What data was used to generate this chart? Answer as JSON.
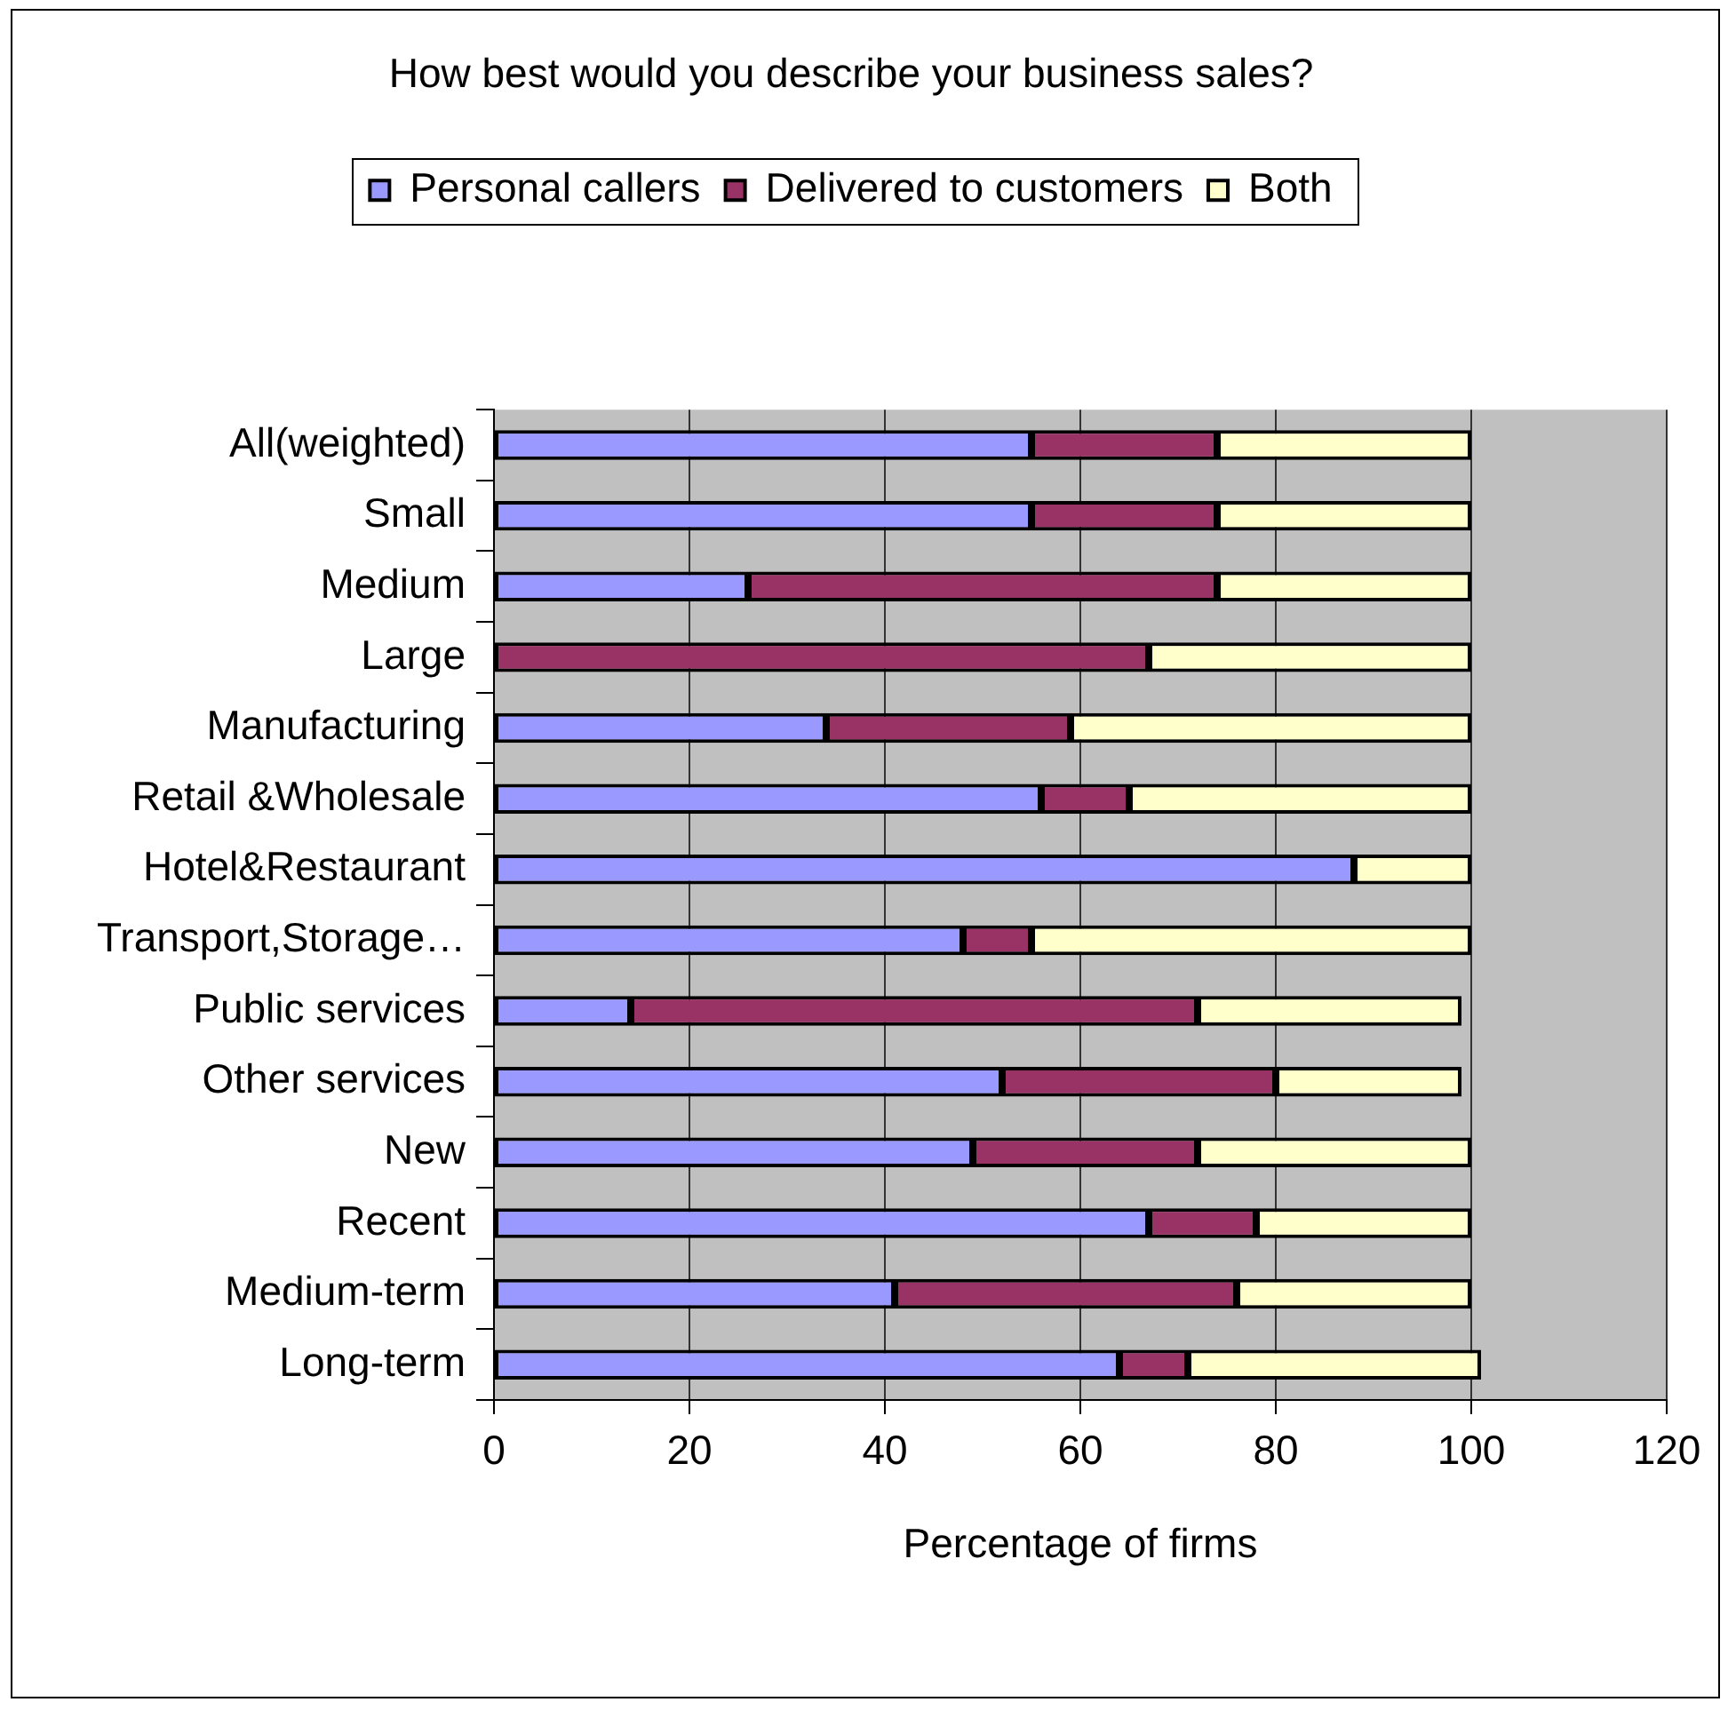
{
  "chart_data": {
    "type": "bar",
    "orientation": "horizontal",
    "stacked": true,
    "title": "How best would you describe your business sales?",
    "xlabel": "Percentage of firms",
    "categories": [
      "All(weighted)",
      "Small",
      "Medium",
      "Large",
      "Manufacturing",
      "Retail &Wholesale",
      "Hotel&Restaurant",
      "Transport,Storage…",
      "Public services",
      "Other services",
      "New",
      "Recent",
      "Medium-term",
      "Long-term"
    ],
    "series": [
      {
        "name": "Personal callers",
        "color": "#9999ff",
        "values": [
          55,
          55,
          26,
          0,
          34,
          56,
          88,
          48,
          14,
          52,
          49,
          67,
          41,
          64
        ]
      },
      {
        "name": "Delivered to customers",
        "color": "#993366",
        "values": [
          19,
          19,
          48,
          67,
          25,
          9,
          0,
          7,
          58,
          28,
          23,
          11,
          35,
          7
        ]
      },
      {
        "name": "Both",
        "color": "#ffffcc",
        "values": [
          26,
          26,
          26,
          33,
          41,
          35,
          12,
          45,
          27,
          19,
          28,
          22,
          24,
          30
        ]
      }
    ],
    "xlim": [
      0,
      120
    ],
    "xticks": [
      0,
      20,
      40,
      60,
      80,
      100,
      120
    ],
    "grid": "x",
    "legend": "top"
  }
}
